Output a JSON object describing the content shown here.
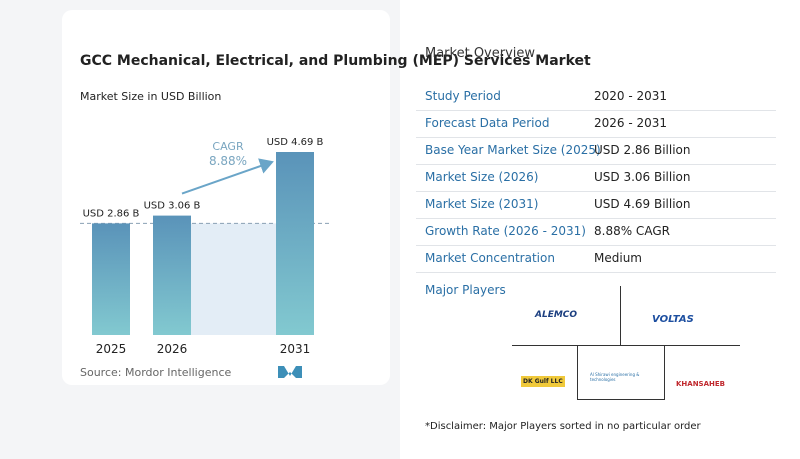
{
  "chart_data": {
    "type": "bar",
    "title": "GCC Mechanical, Electrical, and Plumbing (MEP) Services Market",
    "subtitle": "Market Size in USD Billion",
    "categories": [
      "2025",
      "2026",
      "2031"
    ],
    "values": [
      2.86,
      3.06,
      4.69
    ],
    "value_labels": [
      "USD 2.86 B",
      "USD 3.06 B",
      "USD 4.69 B"
    ],
    "cagr_label": "CAGR",
    "cagr_value": "8.88%",
    "source": "Source: Mordor Intelligence"
  },
  "overview": {
    "title": "Market Overview",
    "rows": [
      [
        "Study Period",
        "2020 - 2031"
      ],
      [
        "Forecast Data Period",
        "2026 - 2031"
      ],
      [
        "Base Year Market Size (2025)",
        "USD 2.86 Billion"
      ],
      [
        "Market Size (2026)",
        "USD 3.06 Billion"
      ],
      [
        "Market Size (2031)",
        "USD 4.69 Billion"
      ],
      [
        "Growth Rate (2026 - 2031)",
        "8.88% CAGR"
      ],
      [
        "Market Concentration",
        "Medium"
      ]
    ],
    "players_title": "Major Players",
    "players": [
      "ALEMCO",
      "VOLTAS",
      "DK Gulf LLC",
      "Al Shirawi engineering & technologies",
      "KHANSAHEB"
    ],
    "disclaimer": "*Disclaimer: Major Players sorted in no particular order"
  }
}
